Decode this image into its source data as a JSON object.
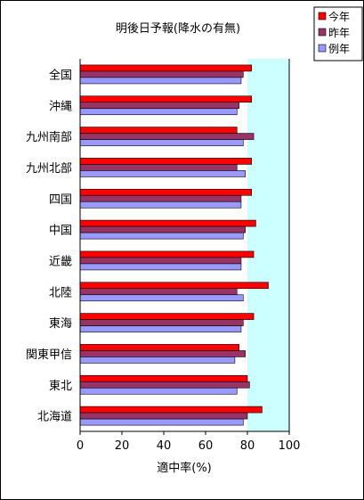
{
  "chart_data": {
    "type": "bar",
    "orientation": "horizontal",
    "title": "明後日予報(降水の有無)",
    "xlabel": "適中率(%)",
    "ylabel": "",
    "xlim": [
      0,
      100
    ],
    "x_ticks": [
      "0",
      "20",
      "40",
      "60",
      "80",
      "100"
    ],
    "categories": [
      "全国",
      "沖縄",
      "九州南部",
      "九州北部",
      "四国",
      "中国",
      "近畿",
      "北陸",
      "東海",
      "関東甲信",
      "東北",
      "北海道"
    ],
    "series": [
      {
        "name": "今年",
        "color": "#ff0000",
        "values": [
          82,
          82,
          75,
          82,
          82,
          84,
          83,
          90,
          83,
          76,
          80,
          87
        ]
      },
      {
        "name": "昨年",
        "color": "#993366",
        "values": [
          78,
          76,
          83,
          75,
          77,
          79,
          77,
          75,
          78,
          79,
          81,
          80
        ]
      },
      {
        "name": "例年",
        "color": "#9999ff",
        "values": [
          77,
          75,
          78,
          79,
          77,
          78,
          77,
          78,
          77,
          74,
          75,
          78
        ]
      }
    ],
    "highlight_band": [
      80,
      100
    ],
    "highlight_color": "#ccffff",
    "plot_background": "#ffffff",
    "legend_position": "top-right"
  }
}
